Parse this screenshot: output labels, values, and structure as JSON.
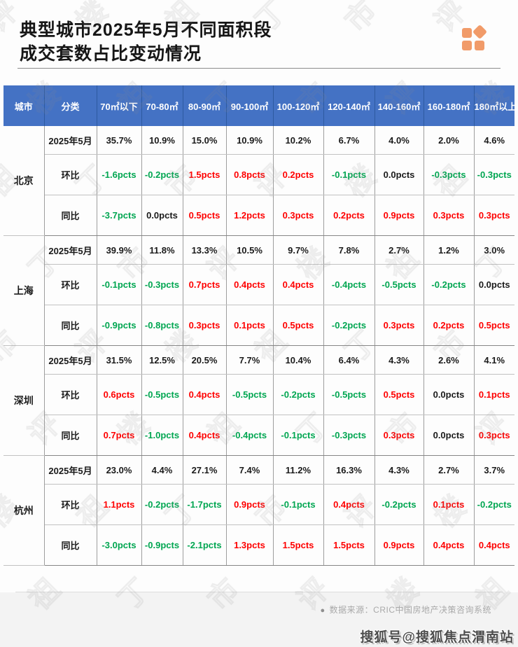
{
  "header": {
    "title_line1": "典型城市2025年5月不同面积段",
    "title_line2": "成交套数占比变动情况",
    "logo_icon": "four-orange-tiles-logo"
  },
  "footer": {
    "bullet": "●",
    "source_note": "数据来源：CRIC中国房地产决策咨询系统",
    "brand_watermark": "搜狐号@搜狐焦点渭南站"
  },
  "background_watermark_chars": [
    "评",
    "楼",
    "祖",
    "丁",
    "市"
  ],
  "colors": {
    "header_bg": "#4472C4",
    "header_border": "#2d5aa0",
    "accent_orange": "#F19B69",
    "positive_value": "#FE0000",
    "negative_value": "#00A651",
    "zero_value": "#1a1a1a",
    "plain_value": "#1a1a1a"
  },
  "chart_data": {
    "type": "table",
    "title": "典型城市2025年5月不同面积段成交套数占比变动情况",
    "columns": [
      "城市",
      "分类",
      "70㎡以下",
      "70-80㎡",
      "80-90㎡",
      "90-100㎡",
      "100-120㎡",
      "120-140㎡",
      "140-160㎡",
      "160-180㎡",
      "180㎡以上"
    ],
    "row_labels": [
      "2025年5月",
      "环比",
      "同比"
    ],
    "value_color_rule": "positive pcts red, negative pcts green, 0.0pcts black, percentages black",
    "cities": [
      {
        "name": "北京",
        "rows": [
          {
            "label": "2025年5月",
            "values": [
              "35.7%",
              "10.9%",
              "15.0%",
              "10.9%",
              "10.2%",
              "6.7%",
              "4.0%",
              "2.0%",
              "4.6%"
            ]
          },
          {
            "label": "环比",
            "values": [
              "-1.6pcts",
              "-0.2pcts",
              "1.5pcts",
              "0.8pcts",
              "0.2pcts",
              "-0.1pcts",
              "0.0pcts",
              "-0.3pcts",
              "-0.3pcts"
            ]
          },
          {
            "label": "同比",
            "values": [
              "-3.7pcts",
              "0.0pcts",
              "0.5pcts",
              "1.2pcts",
              "0.3pcts",
              "0.2pcts",
              "0.9pcts",
              "0.3pcts",
              "0.3pcts"
            ]
          }
        ]
      },
      {
        "name": "上海",
        "rows": [
          {
            "label": "2025年5月",
            "values": [
              "39.9%",
              "11.8%",
              "13.3%",
              "10.5%",
              "9.7%",
              "7.8%",
              "2.7%",
              "1.2%",
              "3.0%"
            ]
          },
          {
            "label": "环比",
            "values": [
              "-0.1pcts",
              "-0.3pcts",
              "0.7pcts",
              "0.4pcts",
              "0.4pcts",
              "-0.4pcts",
              "-0.5pcts",
              "-0.2pcts",
              "0.0pcts"
            ]
          },
          {
            "label": "同比",
            "values": [
              "-0.9pcts",
              "-0.8pcts",
              "0.3pcts",
              "0.1pcts",
              "0.5pcts",
              "-0.2pcts",
              "0.3pcts",
              "0.2pcts",
              "0.5pcts"
            ]
          }
        ]
      },
      {
        "name": "深圳",
        "rows": [
          {
            "label": "2025年5月",
            "values": [
              "31.5%",
              "12.5%",
              "20.5%",
              "7.7%",
              "10.4%",
              "6.4%",
              "4.3%",
              "2.6%",
              "4.1%"
            ]
          },
          {
            "label": "环比",
            "values": [
              "0.6pcts",
              "-0.5pcts",
              "0.4pcts",
              "-0.5pcts",
              "-0.2pcts",
              "-0.5pcts",
              "0.5pcts",
              "0.0pcts",
              "0.1pcts"
            ]
          },
          {
            "label": "同比",
            "values": [
              "0.7pcts",
              "-1.0pcts",
              "0.4pcts",
              "-0.4pcts",
              "-0.1pcts",
              "-0.3pcts",
              "0.3pcts",
              "0.0pcts",
              "0.3pcts"
            ]
          }
        ]
      },
      {
        "name": "杭州",
        "rows": [
          {
            "label": "2025年5月",
            "values": [
              "23.0%",
              "4.4%",
              "27.1%",
              "7.4%",
              "11.2%",
              "16.3%",
              "4.3%",
              "2.7%",
              "3.7%"
            ]
          },
          {
            "label": "环比",
            "values": [
              "1.1pcts",
              "-0.2pcts",
              "-1.7pcts",
              "0.9pcts",
              "-0.1pcts",
              "0.4pcts",
              "-0.2pcts",
              "0.1pcts",
              "-0.2pcts"
            ]
          },
          {
            "label": "同比",
            "values": [
              "-3.0pcts",
              "-0.9pcts",
              "-2.1pcts",
              "1.3pcts",
              "1.5pcts",
              "1.5pcts",
              "0.9pcts",
              "0.4pcts",
              "0.4pcts"
            ]
          }
        ]
      }
    ]
  }
}
